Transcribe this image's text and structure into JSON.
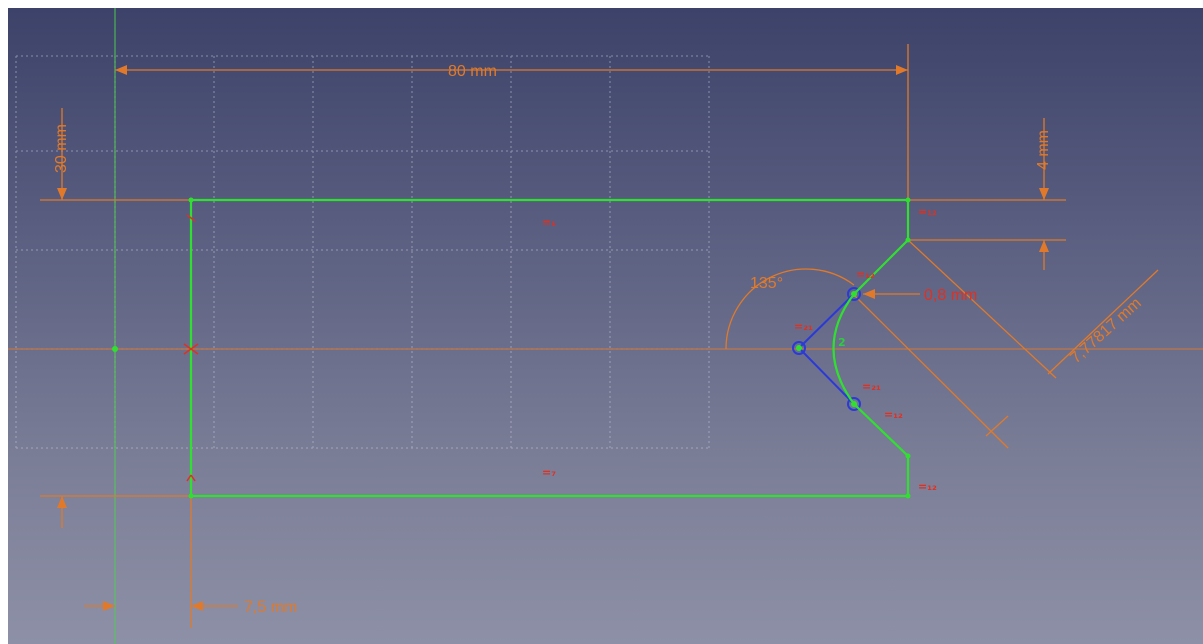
{
  "sketch": {
    "colors": {
      "geometry": "#30e030",
      "construction": "#2040d0",
      "dimension": "#e07a2a",
      "constraint": "#e03020",
      "grid": "#b8bcd0",
      "background_top": "#3c4269",
      "background_bottom": "#8d90a6"
    },
    "dimensions": {
      "width": "80 mm",
      "height": "30 mm",
      "top_offset": "4 mm",
      "left_offset": "7,5 mm",
      "chamfer_length": "7,77817 mm",
      "arc_offset": "0,8 mm",
      "angle": "135°"
    },
    "constraint_labels": {
      "top_equal": "=₁",
      "bottom_equal": "=₇",
      "right_top_equal": "=₁₂",
      "right_bottom_equal": "=₁₂",
      "arc_top": "=₁₂",
      "arc_lower": "=₁₂",
      "arc_radius_top": "=₂₁",
      "arc_radius_bottom": "=₂₁",
      "arc_mid": "2"
    }
  }
}
